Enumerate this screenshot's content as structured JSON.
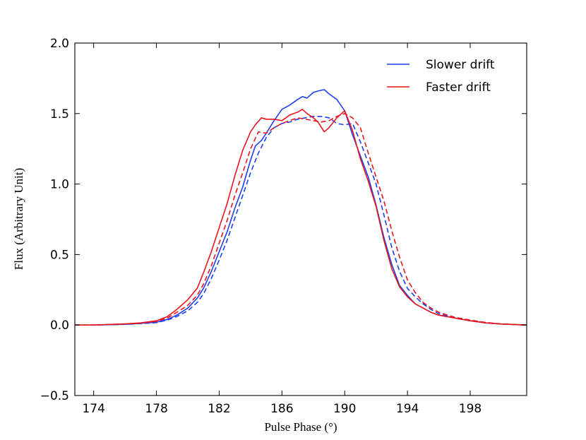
{
  "chart_data": {
    "type": "line",
    "xlabel": "Pulse Phase (°)",
    "ylabel": "Flux (Arbitrary Unit)",
    "xlim": [
      172.8,
      201.6
    ],
    "ylim": [
      -0.5,
      2.0
    ],
    "xticks": [
      174,
      178,
      182,
      186,
      190,
      194,
      198
    ],
    "yticks": [
      -0.5,
      0.0,
      0.5,
      1.0,
      1.5,
      2.0
    ],
    "ytick_labels": [
      "−0.5",
      "0.0",
      "0.5",
      "1.0",
      "1.5",
      "2.0"
    ],
    "grid": false,
    "legend_position": "top-right",
    "legend": [
      {
        "label": "Slower drift",
        "color": "#1f3ff0"
      },
      {
        "label": "Faster drift",
        "color": "#e8161c"
      }
    ],
    "series": [
      {
        "name": "Slower drift",
        "style": "solid",
        "color": "#1f3ff0",
        "x": [
          172.8,
          174,
          176,
          177,
          178,
          178.7,
          179.3,
          180,
          180.6,
          181,
          181.5,
          182,
          182.5,
          183,
          183.5,
          184,
          184.3,
          184.7,
          185,
          185.5,
          186,
          186.5,
          187,
          187.3,
          187.6,
          188,
          188.3,
          188.7,
          189,
          189.5,
          190,
          190.5,
          191,
          191.5,
          192,
          192.5,
          193,
          193.5,
          194,
          194.5,
          195,
          195.5,
          196,
          197,
          198,
          199,
          200,
          201.6
        ],
        "y": [
          0.0,
          0.0,
          0.005,
          0.012,
          0.02,
          0.04,
          0.07,
          0.12,
          0.19,
          0.26,
          0.38,
          0.52,
          0.66,
          0.83,
          0.98,
          1.17,
          1.27,
          1.31,
          1.36,
          1.45,
          1.53,
          1.56,
          1.6,
          1.62,
          1.61,
          1.65,
          1.66,
          1.67,
          1.64,
          1.6,
          1.52,
          1.35,
          1.2,
          1.05,
          0.85,
          0.62,
          0.43,
          0.28,
          0.21,
          0.15,
          0.12,
          0.09,
          0.07,
          0.05,
          0.03,
          0.015,
          0.007,
          0.0
        ]
      },
      {
        "name": "Slower drift (dashed)",
        "style": "dashed",
        "color": "#1f3ff0",
        "x": [
          172.8,
          174,
          176,
          177,
          178,
          178.7,
          179.3,
          180,
          180.6,
          181,
          181.5,
          182,
          182.5,
          183,
          183.5,
          184,
          184.5,
          185,
          185.5,
          186,
          186.5,
          187,
          187.5,
          188,
          188.5,
          189,
          189.5,
          190,
          190.5,
          191,
          191.5,
          192,
          192.5,
          193,
          193.5,
          194,
          194.5,
          195,
          195.5,
          196,
          197,
          198,
          199,
          200,
          201.6
        ],
        "y": [
          0.0,
          0.0,
          0.005,
          0.01,
          0.017,
          0.035,
          0.06,
          0.1,
          0.16,
          0.22,
          0.33,
          0.46,
          0.6,
          0.76,
          0.92,
          1.08,
          1.22,
          1.33,
          1.4,
          1.43,
          1.44,
          1.46,
          1.47,
          1.48,
          1.48,
          1.47,
          1.43,
          1.42,
          1.43,
          1.3,
          1.15,
          1.0,
          0.78,
          0.55,
          0.38,
          0.26,
          0.2,
          0.15,
          0.11,
          0.08,
          0.05,
          0.03,
          0.015,
          0.007,
          0.0
        ]
      },
      {
        "name": "Faster drift",
        "style": "solid",
        "color": "#e8161c",
        "x": [
          172.8,
          174,
          176,
          177,
          178,
          178.7,
          179.3,
          180,
          180.6,
          181,
          181.5,
          182,
          182.5,
          183,
          183.5,
          184,
          184.3,
          184.7,
          185,
          185.5,
          186,
          186.5,
          187,
          187.3,
          187.6,
          188,
          188.3,
          188.7,
          189,
          189.5,
          190,
          190.5,
          191,
          191.5,
          192,
          192.5,
          193,
          193.5,
          194,
          194.5,
          195,
          195.5,
          196,
          197,
          198,
          199,
          200,
          201.6
        ],
        "y": [
          0.0,
          0.0,
          0.008,
          0.015,
          0.03,
          0.06,
          0.11,
          0.18,
          0.26,
          0.37,
          0.52,
          0.69,
          0.86,
          1.06,
          1.24,
          1.37,
          1.42,
          1.47,
          1.46,
          1.46,
          1.45,
          1.49,
          1.51,
          1.53,
          1.5,
          1.47,
          1.44,
          1.37,
          1.4,
          1.47,
          1.52,
          1.38,
          1.18,
          1.02,
          0.84,
          0.6,
          0.4,
          0.27,
          0.2,
          0.15,
          0.12,
          0.09,
          0.07,
          0.05,
          0.03,
          0.015,
          0.007,
          0.0
        ]
      },
      {
        "name": "Faster drift (dashed)",
        "style": "dashed",
        "color": "#e8161c",
        "x": [
          172.8,
          174,
          176,
          177,
          178,
          178.7,
          179.3,
          180,
          180.6,
          181,
          181.5,
          182,
          182.5,
          183,
          183.5,
          184,
          184.5,
          185,
          185.5,
          186,
          186.5,
          187,
          187.5,
          188,
          188.5,
          189,
          189.5,
          190,
          190.5,
          191,
          191.5,
          192,
          192.5,
          193,
          193.5,
          194,
          194.5,
          195,
          195.5,
          196,
          197,
          198,
          199,
          200,
          201.6
        ],
        "y": [
          0.0,
          0.0,
          0.007,
          0.013,
          0.025,
          0.05,
          0.09,
          0.14,
          0.21,
          0.29,
          0.42,
          0.58,
          0.74,
          0.92,
          1.08,
          1.25,
          1.37,
          1.36,
          1.4,
          1.43,
          1.45,
          1.47,
          1.46,
          1.45,
          1.44,
          1.45,
          1.48,
          1.5,
          1.47,
          1.4,
          1.22,
          1.05,
          0.88,
          0.67,
          0.48,
          0.32,
          0.23,
          0.16,
          0.12,
          0.09,
          0.055,
          0.035,
          0.018,
          0.008,
          0.0
        ]
      }
    ]
  }
}
